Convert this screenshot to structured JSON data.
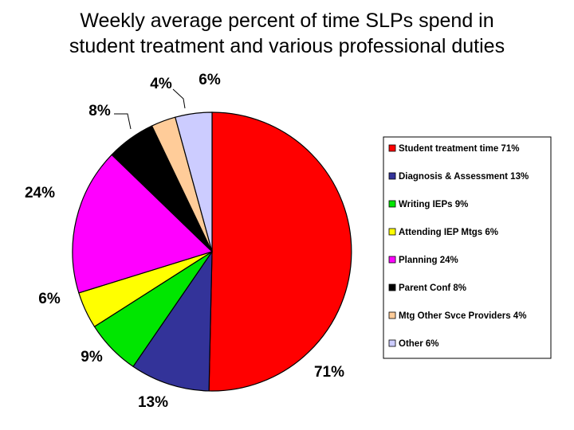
{
  "title_line1": "Weekly average percent of time SLPs spend in",
  "title_line2": "student treatment and various professional duties",
  "chart_data": {
    "type": "pie",
    "title": "Weekly average percent of time SLPs spend in student treatment and various professional duties",
    "legend_position": "right",
    "slices": [
      {
        "legend": "Student treatment time 71%",
        "label": "71%",
        "value": 71,
        "color": "#ff0000"
      },
      {
        "legend": "Diagnosis & Assessment 13%",
        "label": "13%",
        "value": 13,
        "color": "#333399"
      },
      {
        "legend": "Writing IEPs 9%",
        "label": "9%",
        "value": 9,
        "color": "#00e600"
      },
      {
        "legend": "Attending IEP Mtgs 6%",
        "label": "6%",
        "value": 6,
        "color": "#ffff00"
      },
      {
        "legend": "Planning  24%",
        "label": "24%",
        "value": 24,
        "color": "#ff00ff"
      },
      {
        "legend": "Parent Conf 8%",
        "label": "8%",
        "value": 8,
        "color": "#000000"
      },
      {
        "legend": "Mtg Other Svce Providers 4%",
        "label": "4%",
        "value": 4,
        "color": "#ffcc99"
      },
      {
        "legend": "Other 6%",
        "label": "6%",
        "value": 6,
        "color": "#ccccff"
      }
    ]
  }
}
